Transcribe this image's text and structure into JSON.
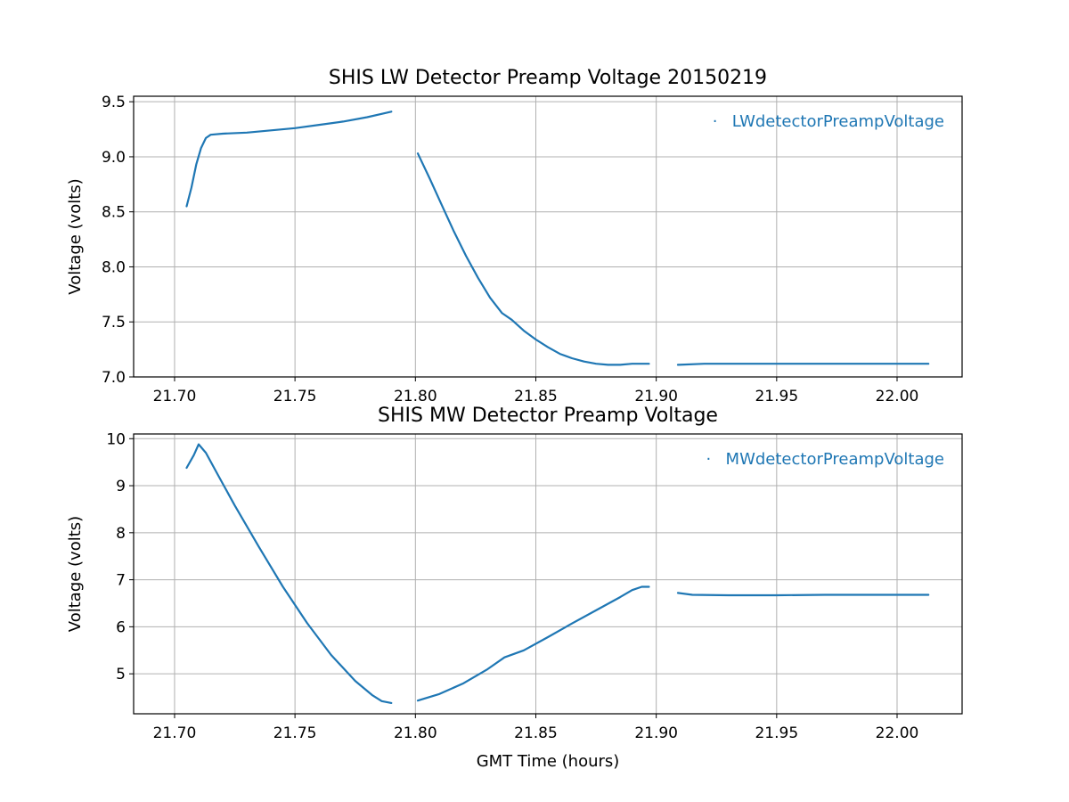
{
  "chart_data": [
    {
      "type": "line",
      "title": "SHIS LW Detector Preamp Voltage 20150219",
      "xlabel": "",
      "ylabel": "Voltage (volts)",
      "xlim": [
        21.683,
        22.027
      ],
      "ylim": [
        7.0,
        9.55
      ],
      "xticks": [
        21.7,
        21.75,
        21.8,
        21.85,
        21.9,
        21.95,
        22.0
      ],
      "xtick_labels": [
        "21.70",
        "21.75",
        "21.80",
        "21.85",
        "21.90",
        "21.95",
        "22.00"
      ],
      "yticks": [
        7.0,
        7.5,
        8.0,
        8.5,
        9.0,
        9.5
      ],
      "ytick_labels": [
        "7.0",
        "7.5",
        "8.0",
        "8.5",
        "9.0",
        "9.5"
      ],
      "grid": true,
      "legend_position": "top-right",
      "legend_marker": "·",
      "series": [
        {
          "name": "LWdetectorPreampVoltage",
          "color": "#1f77b4",
          "segments": [
            [
              [
                21.705,
                8.55
              ],
              [
                21.707,
                8.72
              ],
              [
                21.709,
                8.93
              ],
              [
                21.711,
                9.08
              ],
              [
                21.713,
                9.17
              ],
              [
                21.715,
                9.2
              ],
              [
                21.72,
                9.21
              ],
              [
                21.73,
                9.22
              ],
              [
                21.74,
                9.24
              ],
              [
                21.75,
                9.26
              ],
              [
                21.76,
                9.29
              ],
              [
                21.77,
                9.32
              ],
              [
                21.78,
                9.36
              ],
              [
                21.79,
                9.41
              ]
            ],
            [
              [
                21.801,
                9.03
              ],
              [
                21.806,
                8.8
              ],
              [
                21.811,
                8.56
              ],
              [
                21.816,
                8.32
              ],
              [
                21.821,
                8.1
              ],
              [
                21.826,
                7.9
              ],
              [
                21.831,
                7.72
              ],
              [
                21.836,
                7.58
              ],
              [
                21.84,
                7.52
              ],
              [
                21.845,
                7.42
              ],
              [
                21.85,
                7.34
              ],
              [
                21.855,
                7.27
              ],
              [
                21.86,
                7.21
              ],
              [
                21.865,
                7.17
              ],
              [
                21.87,
                7.14
              ],
              [
                21.875,
                7.12
              ],
              [
                21.88,
                7.11
              ],
              [
                21.885,
                7.11
              ],
              [
                21.89,
                7.12
              ],
              [
                21.897,
                7.12
              ]
            ],
            [
              [
                21.909,
                7.11
              ],
              [
                21.92,
                7.12
              ],
              [
                21.94,
                7.12
              ],
              [
                21.96,
                7.12
              ],
              [
                21.98,
                7.12
              ],
              [
                22.0,
                7.12
              ],
              [
                22.013,
                7.12
              ]
            ]
          ]
        }
      ]
    },
    {
      "type": "line",
      "title": "SHIS MW Detector Preamp Voltage",
      "xlabel": "GMT Time (hours)",
      "ylabel": "Voltage (volts)",
      "xlim": [
        21.683,
        22.027
      ],
      "ylim": [
        4.15,
        10.1
      ],
      "xticks": [
        21.7,
        21.75,
        21.8,
        21.85,
        21.9,
        21.95,
        22.0
      ],
      "xtick_labels": [
        "21.70",
        "21.75",
        "21.80",
        "21.85",
        "21.90",
        "21.95",
        "22.00"
      ],
      "yticks": [
        5,
        6,
        7,
        8,
        9,
        10
      ],
      "ytick_labels": [
        "5",
        "6",
        "7",
        "8",
        "9",
        "10"
      ],
      "grid": true,
      "legend_position": "top-right",
      "legend_marker": "·",
      "series": [
        {
          "name": "MWdetectorPreampVoltage",
          "color": "#1f77b4",
          "segments": [
            [
              [
                21.705,
                9.38
              ],
              [
                21.708,
                9.65
              ],
              [
                21.71,
                9.88
              ],
              [
                21.713,
                9.7
              ],
              [
                21.718,
                9.23
              ],
              [
                21.725,
                8.58
              ],
              [
                21.735,
                7.7
              ],
              [
                21.745,
                6.85
              ],
              [
                21.755,
                6.08
              ],
              [
                21.765,
                5.4
              ],
              [
                21.775,
                4.85
              ],
              [
                21.782,
                4.55
              ],
              [
                21.786,
                4.42
              ],
              [
                21.79,
                4.38
              ]
            ],
            [
              [
                21.801,
                4.43
              ],
              [
                21.81,
                4.57
              ],
              [
                21.82,
                4.8
              ],
              [
                21.83,
                5.1
              ],
              [
                21.837,
                5.35
              ],
              [
                21.845,
                5.5
              ],
              [
                21.855,
                5.78
              ],
              [
                21.865,
                6.07
              ],
              [
                21.875,
                6.35
              ],
              [
                21.885,
                6.63
              ],
              [
                21.89,
                6.78
              ],
              [
                21.894,
                6.85
              ],
              [
                21.897,
                6.85
              ]
            ],
            [
              [
                21.909,
                6.72
              ],
              [
                21.915,
                6.68
              ],
              [
                21.93,
                6.67
              ],
              [
                21.95,
                6.67
              ],
              [
                21.97,
                6.68
              ],
              [
                21.99,
                6.68
              ],
              [
                22.013,
                6.68
              ]
            ]
          ]
        }
      ]
    }
  ]
}
